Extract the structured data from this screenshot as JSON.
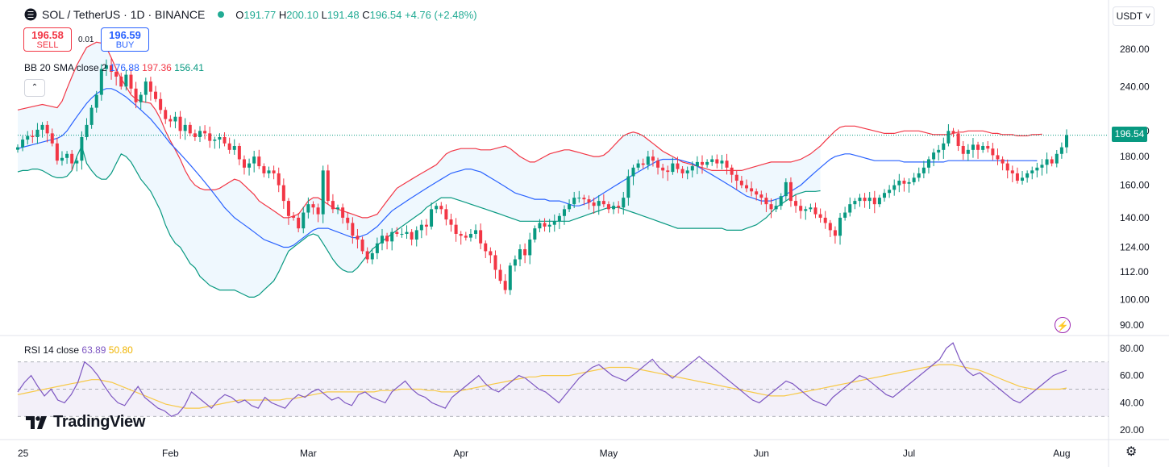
{
  "header": {
    "symbol": "SOL / TetherUS · 1D · BINANCE",
    "ohlc": {
      "o_label": "O",
      "o": "191.77",
      "h_label": "H",
      "h": "200.10",
      "l_label": "L",
      "l": "191.48",
      "c_label": "C",
      "c": "196.54",
      "change": "+4.76 (+2.48%)"
    }
  },
  "trade": {
    "sell_price": "196.58",
    "sell_label": "SELL",
    "spread": "0.01",
    "buy_price": "196.59",
    "buy_label": "BUY"
  },
  "bb_legend": {
    "label": "BB 20 SMA close 2",
    "basis": "176.88",
    "upper": "197.36",
    "lower": "156.41"
  },
  "rsi_legend": {
    "label": "RSI 14 close",
    "rsi": "63.89",
    "ma": "50.80"
  },
  "currency_button": "USDT ˅",
  "last_price": "196.54",
  "logo_text": "TradingView",
  "colors": {
    "up": "#089981",
    "down": "#f23645",
    "bb_upper": "#f23645",
    "bb_basis": "#2962ff",
    "bb_lower": "#089981",
    "rsi": "#7e57c2",
    "rsi_ma": "#f7c948"
  },
  "icons": {
    "symbol_logo": "solana-logo-icon",
    "status": "market-open-dot-icon",
    "collapse": "chevron-up-icon",
    "bolt": "lightning-icon",
    "settings": "gear-icon"
  },
  "price_axis": [
    "280.00",
    "240.00",
    "200.00",
    "180.00",
    "160.00",
    "140.00",
    "124.00",
    "112.00",
    "100.00",
    "90.00"
  ],
  "rsi_axis": [
    "80.00",
    "60.00",
    "40.00",
    "20.00"
  ],
  "time_axis": [
    "25",
    "Feb",
    "Mar",
    "Apr",
    "May",
    "Jun",
    "Jul",
    "Aug"
  ],
  "chart_data": {
    "type": "candlestick",
    "price_scale": "log",
    "ylim": [
      88,
      300
    ],
    "days": 222,
    "closes": [
      187,
      193,
      196,
      195,
      201,
      205,
      198,
      190,
      177,
      179,
      182,
      175,
      177,
      195,
      205,
      220,
      232,
      258,
      262,
      255,
      250,
      240,
      252,
      238,
      225,
      232,
      245,
      235,
      228,
      218,
      210,
      208,
      212,
      200,
      205,
      198,
      195,
      200,
      198,
      192,
      193,
      195,
      190,
      185,
      188,
      178,
      172,
      175,
      180,
      173,
      168,
      170,
      168,
      160,
      150,
      141,
      140,
      134,
      143,
      148,
      146,
      142,
      170,
      150,
      145,
      146,
      140,
      137,
      130,
      128,
      122,
      118,
      121,
      126,
      130,
      127,
      132,
      131,
      131,
      132,
      128,
      133,
      136,
      135,
      145,
      147,
      145,
      139,
      136,
      131,
      130,
      129,
      131,
      133,
      126,
      122,
      120,
      113,
      108,
      104,
      115,
      118,
      123,
      120,
      128,
      134,
      137,
      135,
      136,
      138,
      141,
      145,
      148,
      152,
      152,
      151,
      149,
      147,
      150,
      148,
      145,
      147,
      146,
      152,
      166,
      172,
      175,
      174,
      180,
      177,
      172,
      170,
      169,
      175,
      171,
      168,
      170,
      173,
      176,
      174,
      176,
      178,
      175,
      177,
      172,
      167,
      163,
      160,
      158,
      156,
      154,
      152,
      148,
      145,
      147,
      153,
      162,
      150,
      147,
      144,
      145,
      146,
      142,
      140,
      137,
      133,
      130,
      140,
      143,
      148,
      150,
      152,
      150,
      152,
      148,
      152,
      155,
      157,
      160,
      163,
      161,
      162,
      165,
      168,
      172,
      178,
      183,
      185,
      190,
      200,
      198,
      188,
      182,
      185,
      189,
      185,
      188,
      186,
      181,
      178,
      175,
      170,
      168,
      163,
      165,
      168,
      170,
      172,
      174,
      178,
      175,
      182,
      187,
      196.54
    ],
    "bb_upper": [
      218,
      219,
      220,
      221,
      222,
      223,
      222,
      221,
      220,
      226,
      238,
      250,
      262,
      272,
      282,
      285,
      288,
      287,
      282,
      270,
      258,
      248,
      240,
      232,
      228,
      226,
      225,
      224,
      218,
      210,
      200,
      192,
      185,
      178,
      170,
      164,
      160,
      158,
      157,
      157,
      157,
      158,
      160,
      162,
      164,
      163,
      160,
      157,
      154,
      150,
      148,
      146,
      144,
      142,
      140,
      140,
      141,
      142,
      146,
      150,
      152,
      152,
      150,
      148,
      146,
      145,
      144,
      143,
      142,
      141,
      140,
      140,
      141,
      142,
      146,
      150,
      154,
      158,
      160,
      162,
      164,
      166,
      168,
      170,
      172,
      174,
      178,
      182,
      184,
      185,
      186,
      186,
      186,
      186,
      185,
      185,
      185,
      186,
      187,
      188,
      186,
      183,
      180,
      178,
      176,
      176,
      178,
      180,
      182,
      183,
      184,
      185,
      185,
      184,
      183,
      182,
      181,
      180,
      180,
      181,
      184,
      188,
      192,
      196,
      198,
      199,
      198,
      196,
      193,
      190,
      187,
      184,
      182,
      180,
      178,
      176,
      175,
      174,
      173,
      172,
      171,
      170,
      170,
      170,
      170,
      170,
      170,
      170,
      171,
      172,
      173,
      174,
      175,
      176,
      176,
      176,
      176,
      176,
      177,
      178,
      180,
      182,
      185,
      188,
      192,
      196,
      200,
      203,
      204,
      204,
      204,
      203,
      202,
      201,
      200,
      199,
      198,
      198,
      198,
      199,
      200,
      200,
      200,
      200,
      199,
      198,
      197,
      197,
      197,
      197,
      198,
      199,
      199,
      200,
      200,
      200,
      200,
      199,
      198,
      198,
      197,
      197,
      197,
      196,
      196,
      196,
      197,
      197,
      197.36
    ],
    "bb_basis": [
      186,
      187,
      188,
      189,
      190,
      191,
      192,
      193,
      194,
      196,
      200,
      206,
      212,
      218,
      224,
      229,
      233,
      236,
      238,
      238,
      236,
      233,
      230,
      226,
      222,
      218,
      214,
      210,
      205,
      200,
      195,
      190,
      186,
      182,
      178,
      174,
      170,
      166,
      162,
      158,
      154,
      150,
      146,
      143,
      140,
      138,
      136,
      134,
      132,
      130,
      128,
      127,
      126,
      125,
      124,
      124,
      125,
      127,
      129,
      131,
      133,
      134,
      134,
      134,
      133,
      132,
      131,
      130,
      129,
      129,
      130,
      131,
      133,
      135,
      138,
      141,
      144,
      146,
      148,
      150,
      152,
      154,
      156,
      158,
      160,
      162,
      164,
      166,
      168,
      169,
      170,
      171,
      171,
      170,
      169,
      167,
      165,
      163,
      161,
      159,
      157,
      155,
      154,
      153,
      152,
      151,
      151,
      151,
      150,
      150,
      150,
      149,
      148,
      147,
      147,
      148,
      149,
      151,
      153,
      155,
      157,
      159,
      161,
      163,
      165,
      167,
      169,
      171,
      173,
      175,
      177,
      178,
      178,
      178,
      178,
      177,
      176,
      175,
      173,
      171,
      169,
      167,
      165,
      163,
      161,
      159,
      157,
      155,
      153,
      152,
      151,
      150,
      150,
      150,
      151,
      152,
      154,
      156,
      158,
      160,
      163,
      166,
      169,
      172,
      175,
      178,
      180,
      181,
      182,
      182,
      181,
      180,
      179,
      178,
      177,
      177,
      177,
      177,
      177,
      177,
      176,
      176,
      176,
      176,
      176,
      176,
      176,
      176,
      176,
      177,
      177,
      177,
      177,
      177,
      177,
      177,
      177,
      177,
      177,
      177,
      177,
      177,
      177,
      177,
      177,
      177,
      177,
      176.88
    ],
    "bb_lower": [
      169,
      170,
      170,
      171,
      171,
      170,
      168,
      166,
      165,
      165,
      166,
      170,
      180,
      188,
      175,
      170,
      166,
      164,
      164,
      168,
      175,
      182,
      180,
      176,
      170,
      164,
      160,
      156,
      150,
      144,
      136,
      130,
      126,
      124,
      120,
      116,
      114,
      110,
      108,
      106,
      105,
      104,
      104,
      104,
      104,
      103,
      102,
      101,
      101,
      102,
      104,
      106,
      108,
      112,
      117,
      122,
      124,
      126,
      128,
      130,
      131,
      130,
      126,
      122,
      118,
      115,
      113,
      112,
      112,
      114,
      117,
      120,
      123,
      125,
      127,
      129,
      131,
      133,
      135,
      137,
      139,
      141,
      143,
      146,
      148,
      150,
      152,
      152,
      152,
      151,
      150,
      149,
      148,
      147,
      146,
      145,
      144,
      143,
      142,
      141,
      140,
      139,
      138,
      138,
      138,
      138,
      138,
      138,
      138,
      138,
      138,
      138,
      138,
      139,
      140,
      141,
      142,
      143,
      144,
      145,
      146,
      146,
      146,
      145,
      144,
      143,
      142,
      141,
      140,
      139,
      138,
      137,
      136,
      135,
      134,
      134,
      134,
      134,
      134,
      134,
      134,
      134,
      134,
      134,
      133,
      133,
      133,
      133,
      134,
      135,
      136,
      138,
      140,
      143,
      146,
      148,
      150,
      152,
      154,
      155,
      156,
      156,
      156,
      156.41
    ],
    "rsi": [
      48,
      55,
      60,
      52,
      45,
      50,
      42,
      40,
      46,
      55,
      70,
      66,
      60,
      52,
      45,
      40,
      38,
      45,
      52,
      44,
      40,
      36,
      34,
      30,
      32,
      38,
      48,
      44,
      40,
      36,
      42,
      46,
      44,
      40,
      42,
      38,
      36,
      44,
      40,
      38,
      36,
      42,
      46,
      44,
      48,
      50,
      46,
      42,
      44,
      40,
      38,
      46,
      48,
      44,
      42,
      40,
      48,
      52,
      56,
      50,
      46,
      44,
      40,
      38,
      36,
      44,
      48,
      52,
      56,
      60,
      54,
      50,
      48,
      52,
      56,
      60,
      58,
      54,
      50,
      48,
      44,
      40,
      46,
      52,
      58,
      62,
      66,
      68,
      64,
      60,
      58,
      56,
      60,
      64,
      68,
      72,
      66,
      62,
      58,
      62,
      66,
      70,
      74,
      70,
      66,
      62,
      58,
      54,
      50,
      46,
      42,
      40,
      44,
      48,
      52,
      56,
      54,
      50,
      46,
      42,
      40,
      38,
      44,
      48,
      52,
      56,
      60,
      58,
      54,
      50,
      46,
      44,
      48,
      52,
      56,
      60,
      64,
      68,
      72,
      80,
      84,
      72,
      64,
      60,
      62,
      58,
      54,
      50,
      46,
      42,
      40,
      44,
      48,
      52,
      56,
      60,
      62,
      63.89
    ],
    "rsi_ma": [
      46,
      47,
      48,
      49,
      50,
      51,
      52,
      53,
      54,
      55,
      56,
      57,
      57,
      56,
      55,
      53,
      51,
      49,
      47,
      45,
      43,
      41,
      39,
      38,
      37,
      36,
      36,
      36,
      37,
      38,
      39,
      40,
      41,
      42,
      42,
      42,
      42,
      42,
      42,
      42,
      43,
      43,
      44,
      45,
      46,
      47,
      48,
      48,
      48,
      48,
      48,
      48,
      48,
      48,
      49,
      49,
      49,
      50,
      50,
      50,
      50,
      49,
      49,
      48,
      48,
      48,
      49,
      50,
      51,
      52,
      53,
      54,
      55,
      56,
      57,
      58,
      59,
      59,
      60,
      60,
      60,
      60,
      60,
      61,
      62,
      63,
      64,
      65,
      66,
      66,
      66,
      66,
      65,
      64,
      63,
      62,
      61,
      60,
      59,
      58,
      57,
      56,
      55,
      54,
      53,
      52,
      51,
      50,
      49,
      48,
      47,
      46,
      45,
      45,
      45,
      46,
      47,
      48,
      49,
      50,
      51,
      52,
      53,
      54,
      55,
      56,
      57,
      58,
      59,
      60,
      61,
      62,
      63,
      64,
      65,
      66,
      67,
      68,
      68,
      68,
      67,
      66,
      65,
      64,
      62,
      60,
      58,
      56,
      54,
      52,
      51,
      50,
      50,
      50,
      50,
      50,
      50.8
    ]
  }
}
